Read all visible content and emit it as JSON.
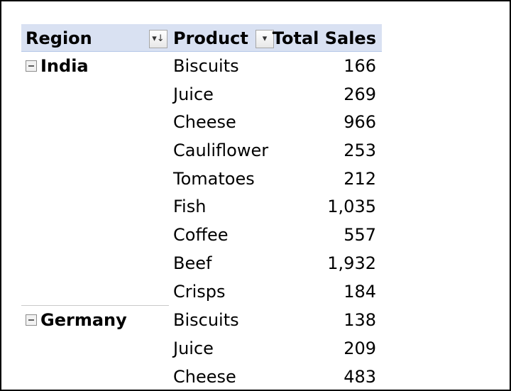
{
  "pivot": {
    "headers": {
      "region": "Region",
      "product": "Product",
      "total": "Total Sales"
    },
    "groups": [
      {
        "region": "India",
        "rows": [
          {
            "product": "Biscuits",
            "total": "166"
          },
          {
            "product": "Juice",
            "total": "269"
          },
          {
            "product": "Cheese",
            "total": "966"
          },
          {
            "product": "Cauliflower",
            "total": "253"
          },
          {
            "product": "Tomatoes",
            "total": "212"
          },
          {
            "product": "Fish",
            "total": "1,035"
          },
          {
            "product": "Coffee",
            "total": "557"
          },
          {
            "product": "Beef",
            "total": "1,932"
          },
          {
            "product": "Crisps",
            "total": "184"
          }
        ]
      },
      {
        "region": "Germany",
        "rows": [
          {
            "product": "Biscuits",
            "total": "138"
          },
          {
            "product": "Juice",
            "total": "209"
          },
          {
            "product": "Cheese",
            "total": "483"
          }
        ]
      }
    ],
    "icons": {
      "region_filter": "sort-filter-icon",
      "product_filter": "dropdown-filter-icon",
      "collapse": "collapse-minus-icon"
    }
  }
}
